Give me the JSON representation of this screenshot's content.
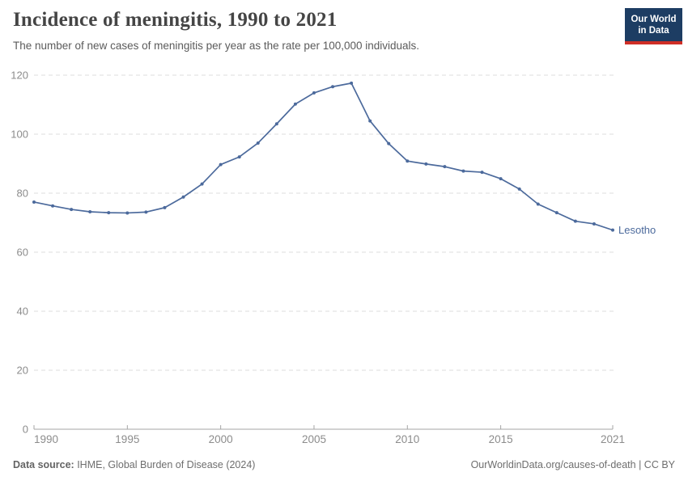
{
  "header": {
    "title": "Incidence of meningitis, 1990 to 2021",
    "subtitle": "The number of new cases of meningitis per year as the rate per 100,000 individuals.",
    "logo": {
      "line1": "Our World",
      "line2": "in Data"
    }
  },
  "chart_data": {
    "type": "line",
    "title": "Incidence of meningitis, 1990 to 2021",
    "xlabel": "",
    "ylabel": "",
    "x": [
      1990,
      1991,
      1992,
      1993,
      1994,
      1995,
      1996,
      1997,
      1998,
      1999,
      2000,
      2001,
      2002,
      2003,
      2004,
      2005,
      2006,
      2007,
      2008,
      2009,
      2010,
      2011,
      2012,
      2013,
      2014,
      2015,
      2016,
      2017,
      2018,
      2019,
      2020,
      2021
    ],
    "series": [
      {
        "name": "Lesotho",
        "color": "#4c6a9c",
        "values": [
          77.0,
          75.7,
          74.5,
          73.7,
          73.4,
          73.3,
          73.6,
          75.1,
          78.7,
          83.1,
          89.7,
          92.3,
          97.0,
          103.5,
          110.2,
          114.0,
          116.1,
          117.3,
          104.5,
          96.8,
          90.9,
          89.9,
          89.0,
          87.5,
          87.1,
          84.9,
          81.4,
          76.3,
          73.4,
          70.5,
          69.6,
          67.5
        ]
      }
    ],
    "ylim": [
      0,
      120
    ],
    "yticks": [
      0,
      20,
      40,
      60,
      80,
      100,
      120
    ],
    "xticks": [
      1990,
      1995,
      2000,
      2005,
      2010,
      2015,
      2021
    ],
    "grid": "horizontal-dashed",
    "legend_position": "end-of-line-label",
    "axis_color": "#a5a5a5",
    "grid_color": "#dcdcdc",
    "tick_label_color": "#8c8c8c"
  },
  "footer": {
    "source_label": "Data source:",
    "source_text": " IHME, Global Burden of Disease (2024)",
    "credit": "OurWorldinData.org/causes-of-death | CC BY"
  },
  "colors": {
    "series": "#4c6a9c",
    "logo_bg": "#1d3d63",
    "logo_bar": "#cf2e26",
    "background": "#ffffff"
  }
}
